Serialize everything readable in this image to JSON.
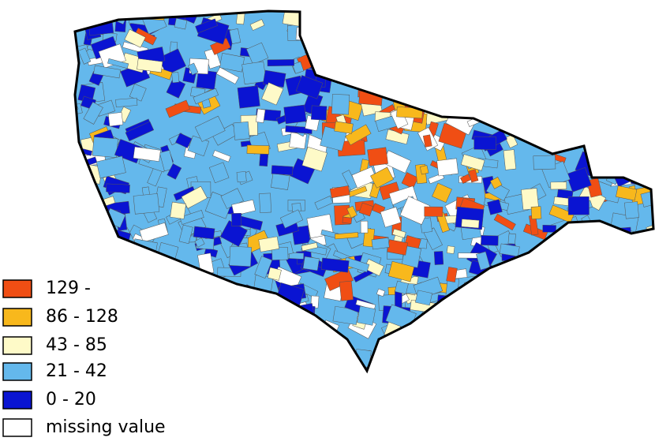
{
  "legend": {
    "items": [
      {
        "label": "129 -",
        "color": "#f04e14"
      },
      {
        "label": "86 - 128",
        "color": "#f8b81c"
      },
      {
        "label": "43 - 85",
        "color": "#fefac8"
      },
      {
        "label": "21 - 42",
        "color": "#64b8ec"
      },
      {
        "label": "0 - 20",
        "color": "#0a14d2"
      },
      {
        "label": "missing value",
        "color": "#ffffff"
      }
    ]
  }
}
